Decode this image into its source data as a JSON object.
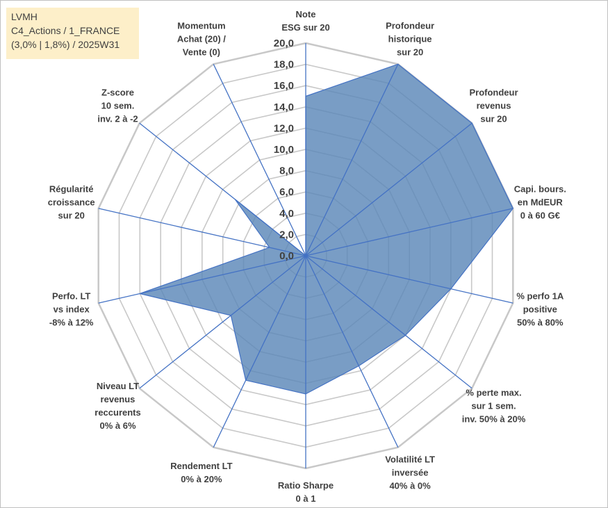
{
  "info_box": {
    "line1": "LVMH",
    "line2": "C4_Actions / 1_FRANCE",
    "line3": "(3,0% | 1,8%) / 2025W31"
  },
  "colors": {
    "fill": "#5b87b8",
    "outline": "#4472c4",
    "grid": "#c8c8c8",
    "text": "#404040",
    "info_bg": "#fdefc9"
  },
  "chart_data": {
    "type": "radar",
    "title": "",
    "rmax": 20,
    "ticks": [
      "0,0",
      "2,0",
      "4,0",
      "6,0",
      "8,0",
      "10,0",
      "12,0",
      "14,0",
      "16,0",
      "18,0",
      "20,0"
    ],
    "axes": [
      {
        "lines": [
          "Note",
          "ESG sur 20"
        ]
      },
      {
        "lines": [
          "Profondeur",
          "historique",
          "sur 20"
        ]
      },
      {
        "lines": [
          "Profondeur",
          "revenus",
          "sur 20"
        ]
      },
      {
        "lines": [
          "Capi. bours.",
          "en MdEUR",
          "0 à 60 G€"
        ]
      },
      {
        "lines": [
          "% perfo 1A",
          "positive",
          "50% à 80%"
        ]
      },
      {
        "lines": [
          "% perte max.",
          "sur 1 sem.",
          "inv. 50% à 20%"
        ]
      },
      {
        "lines": [
          "Volatilité LT",
          "inversée",
          "40% à 0%"
        ]
      },
      {
        "lines": [
          "Ratio Sharpe",
          "0 à 1"
        ]
      },
      {
        "lines": [
          "Rendement LT",
          "0% à 20%"
        ]
      },
      {
        "lines": [
          "Niveau LT",
          "revenus",
          "reccurents",
          "0% à 6%"
        ]
      },
      {
        "lines": [
          "Perfo. LT",
          "vs index",
          "-8% à 12%"
        ]
      },
      {
        "lines": [
          "Régularité",
          "croissance",
          "sur 20"
        ]
      },
      {
        "lines": [
          "Z-score",
          "10 sem.",
          "inv. 2 à -2"
        ]
      },
      {
        "lines": [
          "Momentum",
          "Achat (20) /",
          "Vente (0)"
        ]
      }
    ],
    "series": [
      {
        "values": [
          15.0,
          20.0,
          20.0,
          20.0,
          14.0,
          12.0,
          11.5,
          13.0,
          13.0,
          9.0,
          16.0,
          3.5,
          8.5,
          0.0
        ]
      }
    ]
  }
}
